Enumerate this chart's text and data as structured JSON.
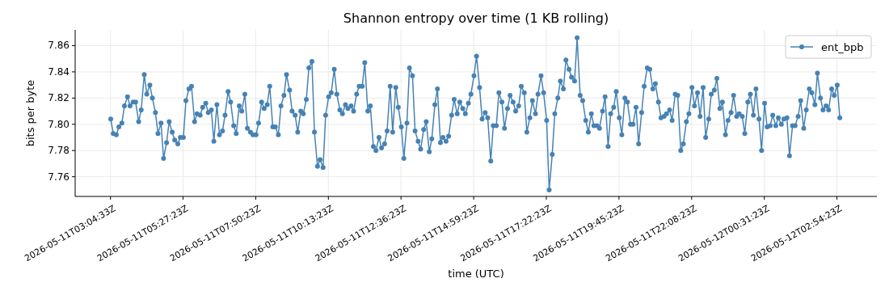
{
  "chart_data": {
    "type": "line",
    "title": "Shannon entropy over time (1 KB rolling)",
    "xlabel": "time (UTC)",
    "ylabel": "bits per byte",
    "xlim": [
      "2026-05-11T01:55",
      "2026-05-12T04:13"
    ],
    "ylim": [
      7.745,
      7.872
    ],
    "xticks": [
      {
        "value": "2026-05-11T03:04:33",
        "label": "2026-05-11T03:04:33Z"
      },
      {
        "value": "2026-05-11T05:27:23",
        "label": "2026-05-11T05:27:23Z"
      },
      {
        "value": "2026-05-11T07:50:23",
        "label": "2026-05-11T07:50:23Z"
      },
      {
        "value": "2026-05-11T10:13:23",
        "label": "2026-05-11T10:13:23Z"
      },
      {
        "value": "2026-05-11T12:36:23",
        "label": "2026-05-11T12:36:23Z"
      },
      {
        "value": "2026-05-11T14:59:23",
        "label": "2026-05-11T14:59:23Z"
      },
      {
        "value": "2026-05-11T17:22:23",
        "label": "2026-05-11T17:22:23Z"
      },
      {
        "value": "2026-05-11T19:45:23",
        "label": "2026-05-11T19:45:23Z"
      },
      {
        "value": "2026-05-11T22:08:23",
        "label": "2026-05-11T22:08:23Z"
      },
      {
        "value": "2026-05-12T00:31:23",
        "label": "2026-05-12T00:31:23Z"
      },
      {
        "value": "2026-05-12T02:54:23",
        "label": "2026-05-12T02:54:23Z"
      }
    ],
    "yticks": [
      {
        "value": 7.76,
        "label": "7.76"
      },
      {
        "value": 7.78,
        "label": "7.78"
      },
      {
        "value": 7.8,
        "label": "7.80"
      },
      {
        "value": 7.82,
        "label": "7.82"
      },
      {
        "value": 7.84,
        "label": "7.84"
      },
      {
        "value": 7.86,
        "label": "7.86"
      }
    ],
    "grid": true,
    "legend": "top right",
    "marker": "circle",
    "line_style": "solid",
    "x": [
      "2026-05-11T03:05",
      "2026-05-11T03:10",
      "2026-05-11T03:16",
      "2026-05-11T03:21",
      "2026-05-11T03:27",
      "2026-05-11T03:32",
      "2026-05-11T03:38",
      "2026-05-11T03:43",
      "2026-05-11T03:49",
      "2026-05-11T03:54",
      "2026-05-11T04:00",
      "2026-05-11T04:05",
      "2026-05-11T04:11",
      "2026-05-11T04:16",
      "2026-05-11T04:22",
      "2026-05-11T04:27",
      "2026-05-11T04:33",
      "2026-05-11T04:38",
      "2026-05-11T04:44",
      "2026-05-11T04:49",
      "2026-05-11T04:55",
      "2026-05-11T05:00",
      "2026-05-11T05:06",
      "2026-05-11T05:11",
      "2026-05-11T05:17",
      "2026-05-11T05:22",
      "2026-05-11T05:28",
      "2026-05-11T05:33",
      "2026-05-11T05:39",
      "2026-05-11T05:44",
      "2026-05-11T05:50",
      "2026-05-11T05:55",
      "2026-05-11T06:01",
      "2026-05-11T06:06",
      "2026-05-11T06:12",
      "2026-05-11T06:17",
      "2026-05-11T06:23",
      "2026-05-11T06:28",
      "2026-05-11T06:34",
      "2026-05-11T06:39",
      "2026-05-11T06:45",
      "2026-05-11T06:50",
      "2026-05-11T06:56",
      "2026-05-11T07:01",
      "2026-05-11T07:07",
      "2026-05-11T07:12",
      "2026-05-11T07:18",
      "2026-05-11T07:23",
      "2026-05-11T07:29",
      "2026-05-11T07:34",
      "2026-05-11T07:40",
      "2026-05-11T07:45",
      "2026-05-11T07:51",
      "2026-05-11T07:56",
      "2026-05-11T08:02",
      "2026-05-11T08:07",
      "2026-05-11T08:13",
      "2026-05-11T08:18",
      "2026-05-11T08:24",
      "2026-05-11T08:29",
      "2026-05-11T08:35",
      "2026-05-11T08:40",
      "2026-05-11T08:46",
      "2026-05-11T08:51",
      "2026-05-11T08:57",
      "2026-05-11T09:02",
      "2026-05-11T09:08",
      "2026-05-11T09:13",
      "2026-05-11T09:19",
      "2026-05-11T09:24",
      "2026-05-11T09:30",
      "2026-05-11T09:35",
      "2026-05-11T09:41",
      "2026-05-11T09:46",
      "2026-05-11T09:52",
      "2026-05-11T09:57",
      "2026-05-11T10:03",
      "2026-05-11T10:08",
      "2026-05-11T10:14",
      "2026-05-11T10:19",
      "2026-05-11T10:25",
      "2026-05-11T10:30",
      "2026-05-11T10:36",
      "2026-05-11T10:41",
      "2026-05-11T10:47",
      "2026-05-11T10:52",
      "2026-05-11T10:58",
      "2026-05-11T11:03",
      "2026-05-11T11:09",
      "2026-05-11T11:14",
      "2026-05-11T11:20",
      "2026-05-11T11:25",
      "2026-05-11T11:31",
      "2026-05-11T11:36",
      "2026-05-11T11:42",
      "2026-05-11T11:47",
      "2026-05-11T11:53",
      "2026-05-11T11:58",
      "2026-05-11T12:04",
      "2026-05-11T12:09",
      "2026-05-11T12:15",
      "2026-05-11T12:20",
      "2026-05-11T12:26",
      "2026-05-11T12:31",
      "2026-05-11T12:37",
      "2026-05-11T12:42",
      "2026-05-11T12:48",
      "2026-05-11T12:53",
      "2026-05-11T12:59",
      "2026-05-11T13:04",
      "2026-05-11T13:10",
      "2026-05-11T13:15",
      "2026-05-11T13:21",
      "2026-05-11T13:26",
      "2026-05-11T13:32",
      "2026-05-11T13:37",
      "2026-05-11T13:43",
      "2026-05-11T13:48",
      "2026-05-11T13:54",
      "2026-05-11T13:59",
      "2026-05-11T14:05",
      "2026-05-11T14:10",
      "2026-05-11T14:16",
      "2026-05-11T14:21",
      "2026-05-11T14:27",
      "2026-05-11T14:32",
      "2026-05-11T14:38",
      "2026-05-11T14:43",
      "2026-05-11T14:49",
      "2026-05-11T14:54",
      "2026-05-11T15:00",
      "2026-05-11T15:05",
      "2026-05-11T15:11",
      "2026-05-11T15:16",
      "2026-05-11T15:22",
      "2026-05-11T15:27",
      "2026-05-11T15:33",
      "2026-05-11T15:38",
      "2026-05-11T15:44",
      "2026-05-11T15:49",
      "2026-05-11T15:55",
      "2026-05-11T16:00",
      "2026-05-11T16:06",
      "2026-05-11T16:11",
      "2026-05-11T16:17",
      "2026-05-11T16:22",
      "2026-05-11T16:28",
      "2026-05-11T16:33",
      "2026-05-11T16:39",
      "2026-05-11T16:44",
      "2026-05-11T16:50",
      "2026-05-11T16:55",
      "2026-05-11T17:01",
      "2026-05-11T17:06",
      "2026-05-11T17:12",
      "2026-05-11T17:17",
      "2026-05-11T17:23",
      "2026-05-11T17:28",
      "2026-05-11T17:34",
      "2026-05-11T17:39",
      "2026-05-11T17:45",
      "2026-05-11T17:50",
      "2026-05-11T17:56",
      "2026-05-11T18:01",
      "2026-05-11T18:07",
      "2026-05-11T18:12",
      "2026-05-11T18:18",
      "2026-05-11T18:23",
      "2026-05-11T18:29",
      "2026-05-11T18:34",
      "2026-05-11T18:40",
      "2026-05-11T18:45",
      "2026-05-11T18:51",
      "2026-05-11T18:56",
      "2026-05-11T19:02",
      "2026-05-11T19:07",
      "2026-05-11T19:13",
      "2026-05-11T19:18",
      "2026-05-11T19:24",
      "2026-05-11T19:29",
      "2026-05-11T19:35",
      "2026-05-11T19:40",
      "2026-05-11T19:46",
      "2026-05-11T19:51",
      "2026-05-11T19:57",
      "2026-05-11T20:02",
      "2026-05-11T20:08",
      "2026-05-11T20:13",
      "2026-05-11T20:19",
      "2026-05-11T20:24",
      "2026-05-11T20:30",
      "2026-05-11T20:35",
      "2026-05-11T20:41",
      "2026-05-11T20:46",
      "2026-05-11T20:52",
      "2026-05-11T20:57",
      "2026-05-11T21:03",
      "2026-05-11T21:08",
      "2026-05-11T21:14",
      "2026-05-11T21:19",
      "2026-05-11T21:25",
      "2026-05-11T21:30",
      "2026-05-11T21:36",
      "2026-05-11T21:41",
      "2026-05-11T21:47",
      "2026-05-11T21:52",
      "2026-05-11T21:58",
      "2026-05-11T22:03",
      "2026-05-11T22:09",
      "2026-05-11T22:14",
      "2026-05-11T22:20",
      "2026-05-11T22:25",
      "2026-05-11T22:31",
      "2026-05-11T22:36",
      "2026-05-11T22:42",
      "2026-05-11T22:47",
      "2026-05-11T22:53",
      "2026-05-11T22:58",
      "2026-05-11T23:04",
      "2026-05-11T23:09",
      "2026-05-11T23:15",
      "2026-05-11T23:20",
      "2026-05-11T23:26",
      "2026-05-11T23:31",
      "2026-05-11T23:37",
      "2026-05-11T23:42",
      "2026-05-11T23:48",
      "2026-05-11T23:53",
      "2026-05-11T23:59",
      "2026-05-12T00:04",
      "2026-05-12T00:10",
      "2026-05-12T00:15",
      "2026-05-12T00:21",
      "2026-05-12T00:26",
      "2026-05-12T00:32",
      "2026-05-12T00:37",
      "2026-05-12T00:43",
      "2026-05-12T00:48",
      "2026-05-12T00:54",
      "2026-05-12T00:59",
      "2026-05-12T01:05",
      "2026-05-12T01:10",
      "2026-05-12T01:16",
      "2026-05-12T01:21",
      "2026-05-12T01:27",
      "2026-05-12T01:32",
      "2026-05-12T01:38",
      "2026-05-12T01:43",
      "2026-05-12T01:49",
      "2026-05-12T01:54",
      "2026-05-12T02:00",
      "2026-05-12T02:05",
      "2026-05-12T02:11",
      "2026-05-12T02:16",
      "2026-05-12T02:22",
      "2026-05-12T02:27",
      "2026-05-12T02:33",
      "2026-05-12T02:38",
      "2026-05-12T02:44",
      "2026-05-12T02:49",
      "2026-05-12T02:55",
      "2026-05-12T03:00"
    ],
    "series": [
      {
        "name": "ent_bpb",
        "color": "#4682b4",
        "values": [
          7.804,
          7.793,
          7.792,
          7.798,
          7.801,
          7.814,
          7.821,
          7.814,
          7.817,
          7.817,
          7.802,
          7.811,
          7.838,
          7.823,
          7.83,
          7.82,
          7.809,
          7.793,
          7.801,
          7.774,
          7.786,
          7.802,
          7.794,
          7.788,
          7.785,
          7.79,
          7.79,
          7.818,
          7.827,
          7.829,
          7.802,
          7.808,
          7.807,
          7.813,
          7.816,
          7.809,
          7.811,
          7.787,
          7.815,
          7.792,
          7.795,
          7.807,
          7.825,
          7.817,
          7.799,
          7.793,
          7.814,
          7.81,
          7.823,
          7.797,
          7.794,
          7.792,
          7.792,
          7.801,
          7.817,
          7.812,
          7.815,
          7.829,
          7.798,
          7.798,
          7.792,
          7.814,
          7.822,
          7.838,
          7.826,
          7.81,
          7.807,
          7.794,
          7.81,
          7.808,
          7.819,
          7.843,
          7.848,
          7.794,
          7.768,
          7.773,
          7.767,
          7.807,
          7.821,
          7.824,
          7.842,
          7.823,
          7.811,
          7.808,
          7.815,
          7.812,
          7.814,
          7.81,
          7.823,
          7.829,
          7.829,
          7.847,
          7.81,
          7.814,
          7.783,
          7.78,
          7.79,
          7.782,
          7.785,
          7.795,
          7.829,
          7.794,
          7.828,
          7.813,
          7.798,
          7.774,
          7.801,
          7.843,
          7.837,
          7.795,
          7.787,
          7.781,
          7.796,
          7.802,
          7.779,
          7.789,
          7.815,
          7.827,
          7.786,
          7.79,
          7.787,
          7.791,
          7.807,
          7.819,
          7.808,
          7.817,
          7.812,
          7.808,
          7.816,
          7.823,
          7.837,
          7.852,
          7.828,
          7.804,
          7.809,
          7.805,
          7.772,
          7.799,
          7.799,
          7.824,
          7.817,
          7.797,
          7.812,
          7.822,
          7.817,
          7.81,
          7.814,
          7.829,
          7.824,
          7.794,
          7.805,
          7.818,
          7.808,
          7.823,
          7.837,
          7.824,
          7.803,
          7.75,
          7.777,
          7.808,
          7.82,
          7.833,
          7.827,
          7.849,
          7.842,
          7.836,
          7.833,
          7.866,
          7.822,
          7.818,
          7.803,
          7.794,
          7.808,
          7.799,
          7.799,
          7.797,
          7.81,
          7.821,
          7.783,
          7.808,
          7.813,
          7.825,
          7.805,
          7.792,
          7.82,
          7.817,
          7.8,
          7.8,
          7.813,
          7.785,
          7.809,
          7.829,
          7.843,
          7.842,
          7.827,
          7.831,
          7.817,
          7.805,
          7.806,
          7.808,
          7.811,
          7.803,
          7.823,
          7.822,
          7.78,
          7.785,
          7.802,
          7.808,
          7.828,
          7.814,
          7.824,
          7.806,
          7.828,
          7.79,
          7.804,
          7.823,
          7.826,
          7.835,
          7.812,
          7.817,
          7.792,
          7.803,
          7.809,
          7.822,
          7.806,
          7.808,
          7.806,
          7.793,
          7.817,
          7.823,
          7.807,
          7.827,
          7.804,
          7.78,
          7.816,
          7.798,
          7.799,
          7.807,
          7.799,
          7.805,
          7.8,
          7.804,
          7.805,
          7.776,
          7.799,
          7.799,
          7.806,
          7.818,
          7.797,
          7.811,
          7.827,
          7.824,
          7.815,
          7.839,
          7.82,
          7.811,
          7.814,
          7.811,
          7.827,
          7.822,
          7.83,
          7.805
        ]
      }
    ]
  }
}
